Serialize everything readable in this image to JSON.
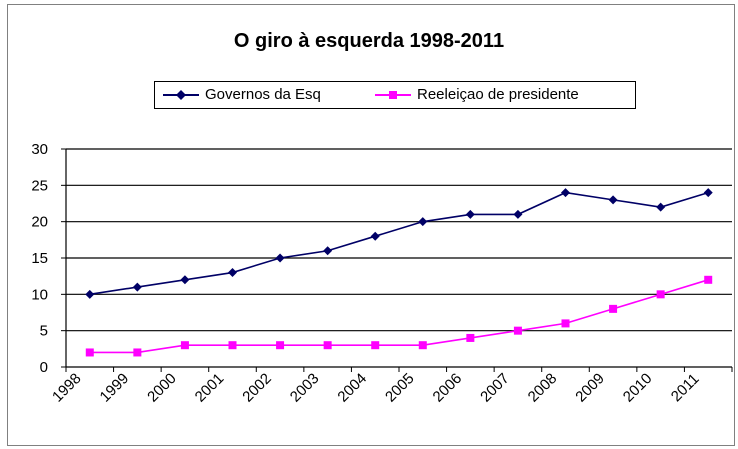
{
  "chart_data": {
    "type": "line",
    "title": "O giro à esquerda 1998-2011",
    "categories": [
      "1998",
      "1999",
      "2000",
      "2001",
      "2002",
      "2003",
      "2004",
      "2005",
      "2006",
      "2007",
      "2008",
      "2009",
      "2010",
      "2011"
    ],
    "series": [
      {
        "name": "Governos da Esq",
        "color": "#000066",
        "marker": "diamond",
        "values": [
          10,
          11,
          12,
          13,
          15,
          16,
          18,
          20,
          21,
          21,
          24,
          23,
          22,
          24
        ]
      },
      {
        "name": "Reeleiçao de presidente",
        "color": "#ff00ff",
        "marker": "square",
        "values": [
          2,
          2,
          3,
          3,
          3,
          3,
          3,
          3,
          4,
          5,
          6,
          8,
          10,
          12
        ]
      }
    ],
    "ylim": [
      0,
      30
    ],
    "yticks": [
      0,
      5,
      10,
      15,
      20,
      25,
      30
    ],
    "grid": true,
    "legend_position": "top"
  }
}
